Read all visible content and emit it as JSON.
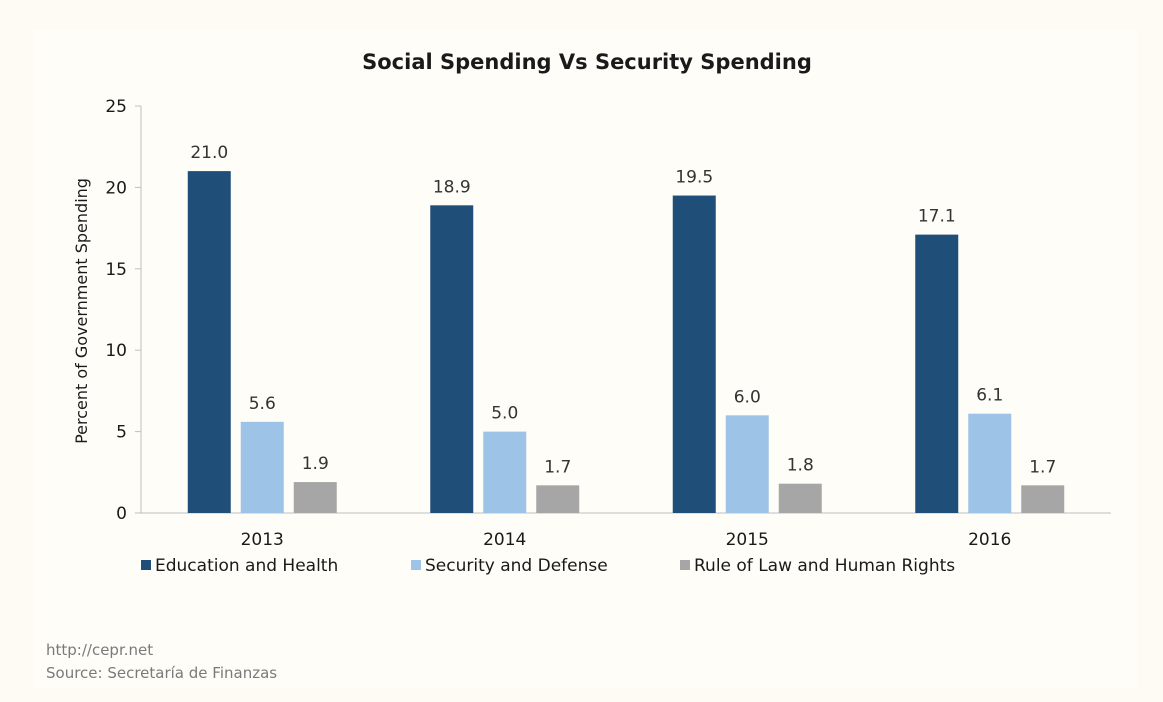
{
  "chart_data": {
    "type": "bar",
    "title": "Social Spending Vs Security Spending",
    "xlabel": "",
    "ylabel": "Percent of Government Spending",
    "categories": [
      "2013",
      "2014",
      "2015",
      "2016"
    ],
    "ylim": [
      0,
      25
    ],
    "yticks": [
      0,
      5,
      10,
      15,
      20,
      25
    ],
    "grid": false,
    "legend_position": "bottom",
    "series": [
      {
        "name": "Education and Health",
        "color": "#1f4e79",
        "values": [
          21.0,
          18.9,
          19.5,
          17.1
        ],
        "labels": [
          "21.0",
          "18.9",
          "19.5",
          "17.1"
        ]
      },
      {
        "name": "Security and Defense",
        "color": "#9dc3e6",
        "values": [
          5.6,
          5.0,
          6.0,
          6.1
        ],
        "labels": [
          "5.6",
          "5.0",
          "6.0",
          "6.1"
        ]
      },
      {
        "name": "Rule of Law and Human Rights",
        "color": "#a6a6a6",
        "values": [
          1.9,
          1.7,
          1.8,
          1.7
        ],
        "labels": [
          "1.9",
          "1.7",
          "1.8",
          "1.7"
        ]
      }
    ]
  },
  "footer": {
    "url": "http://cepr.net",
    "source": "Source: Secretaría de Finanzas"
  }
}
